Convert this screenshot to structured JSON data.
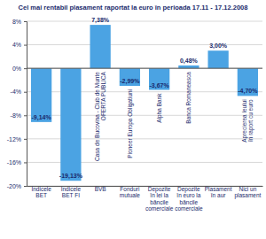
{
  "chart_data": {
    "type": "bar",
    "title": "Cel mai rentabil plasament raportat la euro în perioada 17.11 - 17.12.2008",
    "categories": [
      "Indicele BET",
      "Indicele BET FI",
      "BVB",
      "Fonduri mutuale",
      "Depozite în lei la băncile comerciale",
      "Depozite în euro la băncile comerciale",
      "Plasament în aur",
      "Nici un plasament"
    ],
    "values": [
      -9.14,
      -19.13,
      7.38,
      -2.99,
      -3.67,
      0.48,
      3.0,
      -4.7
    ],
    "value_labels": [
      "-9,14%",
      "-19,13%",
      "7,38%",
      "-2,99%",
      "-3,67%",
      "0,48%",
      "3,00%",
      "-4,70%"
    ],
    "annotations": [
      null,
      null,
      [
        "Casa de Bucovina - Club de Munte",
        "OFERTA PUBLICA"
      ],
      [
        "Pioneer Europa Obligatiuni"
      ],
      [
        "Alpha Bank"
      ],
      [
        "Banca Romaneasca"
      ],
      null,
      [
        "Aprecierea leului",
        "în raport cu euro"
      ]
    ],
    "color": "#4ba3e3",
    "ylim": [
      -20,
      8
    ],
    "yticks": [
      {
        "value": 8,
        "label": "8%"
      },
      {
        "value": 4,
        "label": "4%"
      },
      {
        "value": 0,
        "label": "0%"
      },
      {
        "value": -4,
        "label": "-4%"
      },
      {
        "value": -8,
        "label": "-8%"
      },
      {
        "value": -12,
        "label": "-12%"
      },
      {
        "value": -16,
        "label": "-16%"
      },
      {
        "value": -20,
        "label": "-20%"
      }
    ],
    "grid": true,
    "data_labels": true
  }
}
